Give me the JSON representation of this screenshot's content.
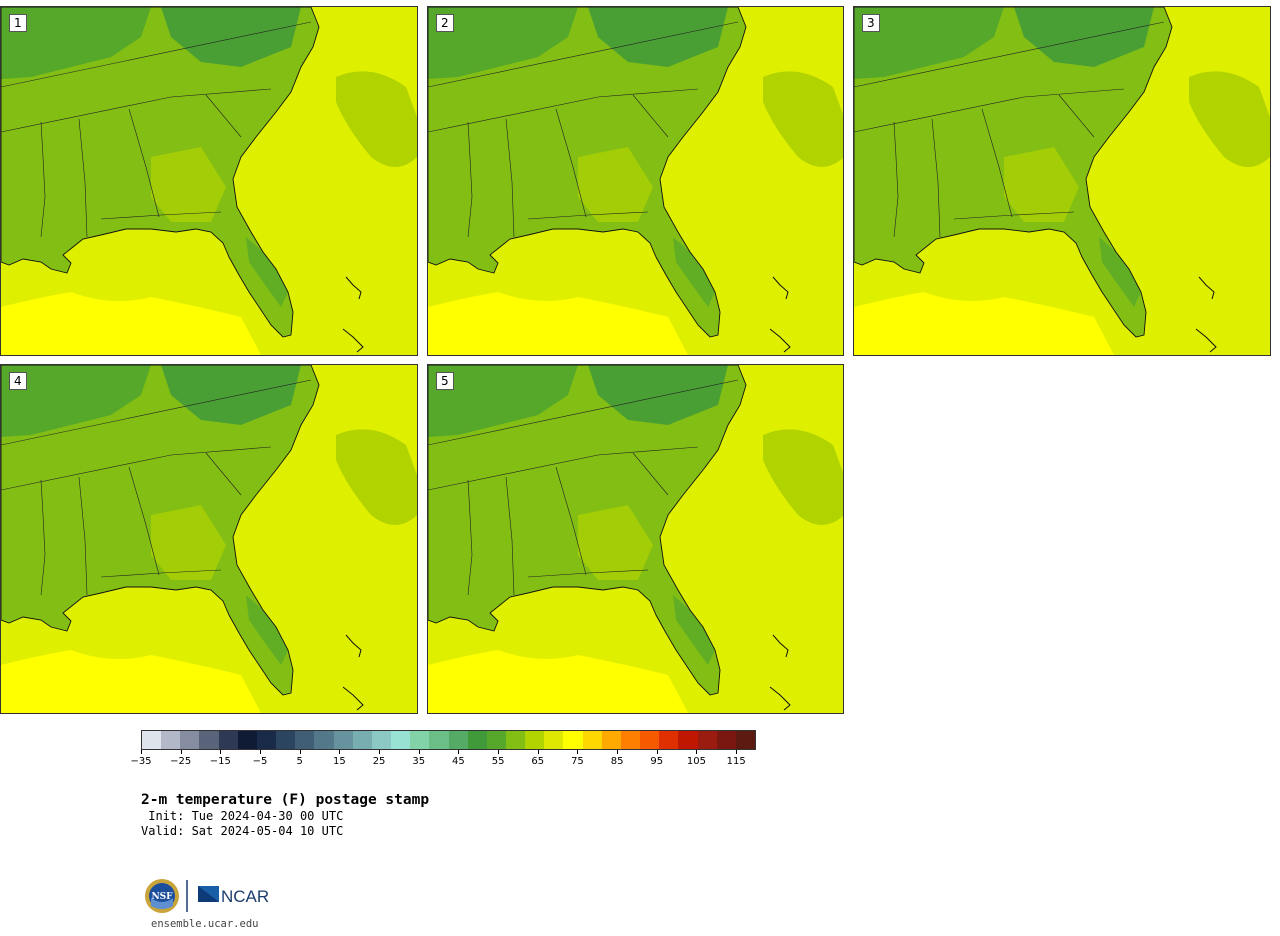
{
  "panels": [
    {
      "label": "1"
    },
    {
      "label": "2"
    },
    {
      "label": "3"
    },
    {
      "label": "4"
    },
    {
      "label": "5"
    }
  ],
  "colorbar": {
    "colors": [
      "#dfe3ec",
      "#b3b8c8",
      "#868da0",
      "#59647a",
      "#2e3a55",
      "#0f1a35",
      "#1a2b4a",
      "#2b4560",
      "#3f5e75",
      "#53788a",
      "#66939e",
      "#79aeb1",
      "#8cc8c4",
      "#98e2d4",
      "#82d3a8",
      "#6bbf86",
      "#55ab66",
      "#419a3a",
      "#55a82a",
      "#82be14",
      "#b1d300",
      "#dfe800",
      "#ffff00",
      "#ffd700",
      "#ffaa00",
      "#ff8000",
      "#f55a00",
      "#e02f00",
      "#c01800",
      "#9a1b10",
      "#7a1710",
      "#5c1a10"
    ],
    "tick_labels": [
      "−35",
      "−25",
      "−15",
      "−5",
      "5",
      "15",
      "25",
      "35",
      "45",
      "55",
      "65",
      "75",
      "85",
      "95",
      "105",
      "115"
    ],
    "min": -35,
    "max": 120,
    "tick_values": [
      -35,
      -25,
      -15,
      -5,
      5,
      15,
      25,
      35,
      45,
      55,
      65,
      75,
      85,
      95,
      105,
      115
    ]
  },
  "title": "2-m temperature (F) postage stamp",
  "init": " Init: Tue 2024-04-30 00 UTC",
  "valid": "Valid: Sat 2024-05-04 10 UTC",
  "logo": {
    "nsf": "NSF",
    "ncar": "NCAR"
  },
  "site": "ensemble.ucar.edu"
}
